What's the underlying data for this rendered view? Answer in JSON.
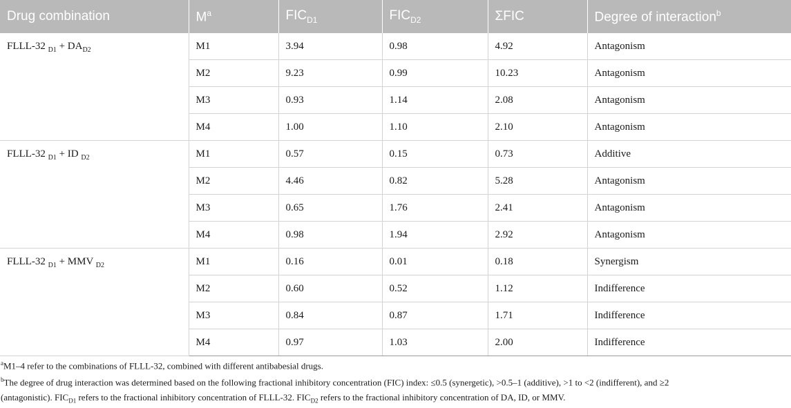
{
  "header": {
    "drug_combination": "Drug combination",
    "m": "M",
    "m_sup": "a",
    "fic": "FIC",
    "fic_d1_sub": "D1",
    "fic_d2_sub": "D2",
    "sum_fic": "ΣFIC",
    "degree": "Degree of interaction",
    "degree_sup": "b"
  },
  "groups": [
    {
      "label": {
        "a": "FLLL-32 ",
        "a_sub": "D1",
        "b": " + DA",
        "b_sub": "D2"
      },
      "rows": [
        {
          "m": "M1",
          "fic_d1": "3.94",
          "fic_d2": "0.98",
          "sum": "4.92",
          "degree": "Antagonism"
        },
        {
          "m": "M2",
          "fic_d1": "9.23",
          "fic_d2": "0.99",
          "sum": "10.23",
          "degree": "Antagonism"
        },
        {
          "m": "M3",
          "fic_d1": "0.93",
          "fic_d2": "1.14",
          "sum": "2.08",
          "degree": "Antagonism"
        },
        {
          "m": "M4",
          "fic_d1": "1.00",
          "fic_d2": "1.10",
          "sum": "2.10",
          "degree": "Antagonism"
        }
      ]
    },
    {
      "label": {
        "a": "FLLL-32 ",
        "a_sub": "D1",
        "b": " + ID ",
        "b_sub": "D2"
      },
      "rows": [
        {
          "m": "M1",
          "fic_d1": "0.57",
          "fic_d2": "0.15",
          "sum": "0.73",
          "degree": "Additive"
        },
        {
          "m": "M2",
          "fic_d1": "4.46",
          "fic_d2": "0.82",
          "sum": "5.28",
          "degree": "Antagonism"
        },
        {
          "m": "M3",
          "fic_d1": "0.65",
          "fic_d2": "1.76",
          "sum": "2.41",
          "degree": "Antagonism"
        },
        {
          "m": "M4",
          "fic_d1": "0.98",
          "fic_d2": "1.94",
          "sum": "2.92",
          "degree": "Antagonism"
        }
      ]
    },
    {
      "label": {
        "a": "FLLL-32 ",
        "a_sub": "D1",
        "b": " + MMV ",
        "b_sub": "D2"
      },
      "rows": [
        {
          "m": "M1",
          "fic_d1": "0.16",
          "fic_d2": "0.01",
          "sum": "0.18",
          "degree": "Synergism"
        },
        {
          "m": "M2",
          "fic_d1": "0.60",
          "fic_d2": "0.52",
          "sum": "1.12",
          "degree": "Indifference"
        },
        {
          "m": "M3",
          "fic_d1": "0.84",
          "fic_d2": "0.87",
          "sum": "1.71",
          "degree": "Indifference"
        },
        {
          "m": "M4",
          "fic_d1": "0.97",
          "fic_d2": "1.03",
          "sum": "2.00",
          "degree": "Indifference"
        }
      ]
    }
  ],
  "footnotes": {
    "a_mark": "a",
    "a_text": "M1–4 refer to the combinations of FLLL-32, combined with different antibabesial drugs.",
    "b_mark": "b",
    "b_line1": "The degree of drug interaction was determined based on the following fractional inhibitory concentration (FIC) index: ≤0.5 (synergetic), >0.5–1 (additive), >1 to <2 (indifferent), and ≥2",
    "b_line2_a": "(antagonistic). FIC",
    "b_line2_sub1": "D1",
    "b_line2_b": " refers to the fractional inhibitory concentration of FLLL-32. FIC",
    "b_line2_sub2": "D2",
    "b_line2_c": " refers to the fractional inhibitory concentration of DA, ID, or MMV."
  }
}
